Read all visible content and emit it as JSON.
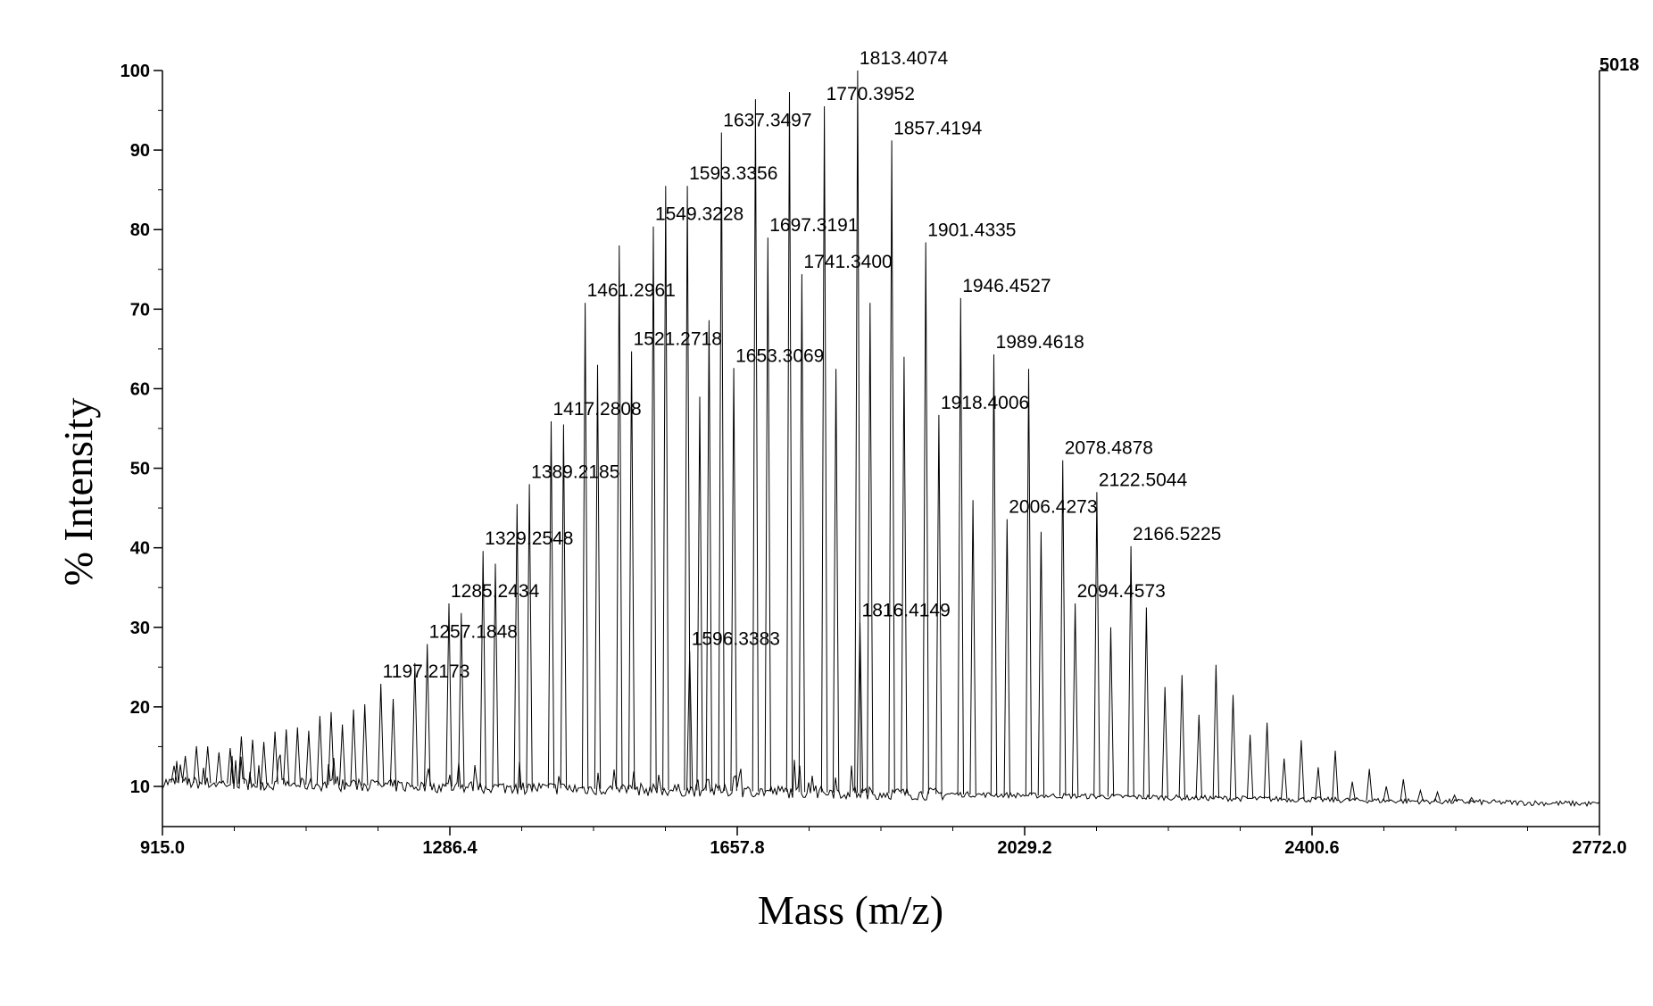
{
  "chart_data": {
    "type": "line",
    "title": "",
    "xlabel": "Mass (m/z)",
    "ylabel": "% Intensity",
    "xlim": [
      915.0,
      2772.0
    ],
    "ylim": [
      5,
      100
    ],
    "x_ticks": [
      "915.0",
      "1286.4",
      "1657.8",
      "2029.2",
      "2400.6",
      "2772.0"
    ],
    "y_ticks": [
      "10",
      "20",
      "30",
      "40",
      "50",
      "60",
      "70",
      "80",
      "90",
      "100"
    ],
    "max_intensity_label": "5018",
    "baseline_start": 10.5,
    "baseline_end": 7.8,
    "grid": false,
    "peaks": [
      {
        "x": 1197.2173,
        "y": 22.9,
        "label": "1197.2173"
      },
      {
        "x": 1257.1848,
        "y": 27.9,
        "label": "1257.1848"
      },
      {
        "x": 1285.2434,
        "y": 33.0,
        "label": "1285.2434"
      },
      {
        "x": 1329.2548,
        "y": 39.6,
        "label": "1329.2548"
      },
      {
        "x": 1389.2185,
        "y": 48.0,
        "label": "1389.2185"
      },
      {
        "x": 1417.2808,
        "y": 55.9,
        "label": "1417.2808"
      },
      {
        "x": 1461.2961,
        "y": 70.8,
        "label": "1461.2961"
      },
      {
        "x": 1521.2718,
        "y": 64.7,
        "label": "1521.2718"
      },
      {
        "x": 1549.3228,
        "y": 80.4,
        "label": "1549.3228"
      },
      {
        "x": 1593.3356,
        "y": 85.5,
        "label": "1593.3356"
      },
      {
        "x": 1596.3383,
        "y": 27.0,
        "label": "1596.3383"
      },
      {
        "x": 1637.3497,
        "y": 92.2,
        "label": "1637.3497"
      },
      {
        "x": 1653.3069,
        "y": 62.6,
        "label": "1653.3069"
      },
      {
        "x": 1697.3191,
        "y": 79.0,
        "label": "1697.3191"
      },
      {
        "x": 1741.34,
        "y": 74.4,
        "label": "1741.3400"
      },
      {
        "x": 1770.3952,
        "y": 95.5,
        "label": "1770.3952"
      },
      {
        "x": 1813.4074,
        "y": 100.0,
        "label": "1813.4074"
      },
      {
        "x": 1816.4149,
        "y": 30.6,
        "label": "1816.4149"
      },
      {
        "x": 1857.4194,
        "y": 91.2,
        "label": "1857.4194"
      },
      {
        "x": 1901.4335,
        "y": 78.4,
        "label": "1901.4335"
      },
      {
        "x": 1918.4006,
        "y": 56.7,
        "label": "1918.4006"
      },
      {
        "x": 1946.4527,
        "y": 71.4,
        "label": "1946.4527"
      },
      {
        "x": 1989.4618,
        "y": 64.3,
        "label": "1989.4618"
      },
      {
        "x": 2006.4273,
        "y": 43.6,
        "label": "2006.4273"
      },
      {
        "x": 2078.4878,
        "y": 51.0,
        "label": "2078.4878"
      },
      {
        "x": 2094.4573,
        "y": 33.0,
        "label": "2094.4573"
      },
      {
        "x": 2122.5044,
        "y": 47.0,
        "label": "2122.5044"
      },
      {
        "x": 2166.5225,
        "y": 40.2,
        "label": "2166.5225"
      }
    ],
    "unlabeled_peaks": [
      {
        "x": 1213.2,
        "y": 21.0
      },
      {
        "x": 1241.2,
        "y": 25.5
      },
      {
        "x": 1301.2,
        "y": 31.8
      },
      {
        "x": 1345.2,
        "y": 38.0
      },
      {
        "x": 1373.2,
        "y": 45.5
      },
      {
        "x": 1433.3,
        "y": 55.5
      },
      {
        "x": 1477.3,
        "y": 63.0
      },
      {
        "x": 1505.3,
        "y": 78.0
      },
      {
        "x": 1565.3,
        "y": 85.5
      },
      {
        "x": 1609.3,
        "y": 59.0
      },
      {
        "x": 1621.3,
        "y": 68.6
      },
      {
        "x": 1681.3,
        "y": 96.4
      },
      {
        "x": 1725.3,
        "y": 97.3
      },
      {
        "x": 1785.4,
        "y": 62.5
      },
      {
        "x": 1829.4,
        "y": 70.8
      },
      {
        "x": 1873.4,
        "y": 64.0
      },
      {
        "x": 1962.4,
        "y": 46.0
      },
      {
        "x": 2034.4,
        "y": 62.5
      },
      {
        "x": 2050.4,
        "y": 42.0
      },
      {
        "x": 2140.5,
        "y": 30.0
      },
      {
        "x": 2186.5,
        "y": 32.5
      },
      {
        "x": 2210.5,
        "y": 22.5
      },
      {
        "x": 2232.5,
        "y": 24.0
      },
      {
        "x": 2254.5,
        "y": 19.0
      },
      {
        "x": 2276.5,
        "y": 25.3
      },
      {
        "x": 2298.5,
        "y": 21.5
      },
      {
        "x": 2320.5,
        "y": 16.5
      },
      {
        "x": 2342.5,
        "y": 18.0
      },
      {
        "x": 2364.5,
        "y": 13.5
      },
      {
        "x": 2386.6,
        "y": 15.8
      },
      {
        "x": 2408.6,
        "y": 12.4
      },
      {
        "x": 2430.6,
        "y": 14.5
      },
      {
        "x": 2452.6,
        "y": 10.6
      },
      {
        "x": 2474.6,
        "y": 12.2
      },
      {
        "x": 2496.6,
        "y": 10.0
      },
      {
        "x": 2518.6,
        "y": 10.9
      },
      {
        "x": 2540.6,
        "y": 9.5
      },
      {
        "x": 2562.7,
        "y": 9.3
      },
      {
        "x": 2584.7,
        "y": 8.9
      },
      {
        "x": 2606.7,
        "y": 8.6
      }
    ]
  }
}
